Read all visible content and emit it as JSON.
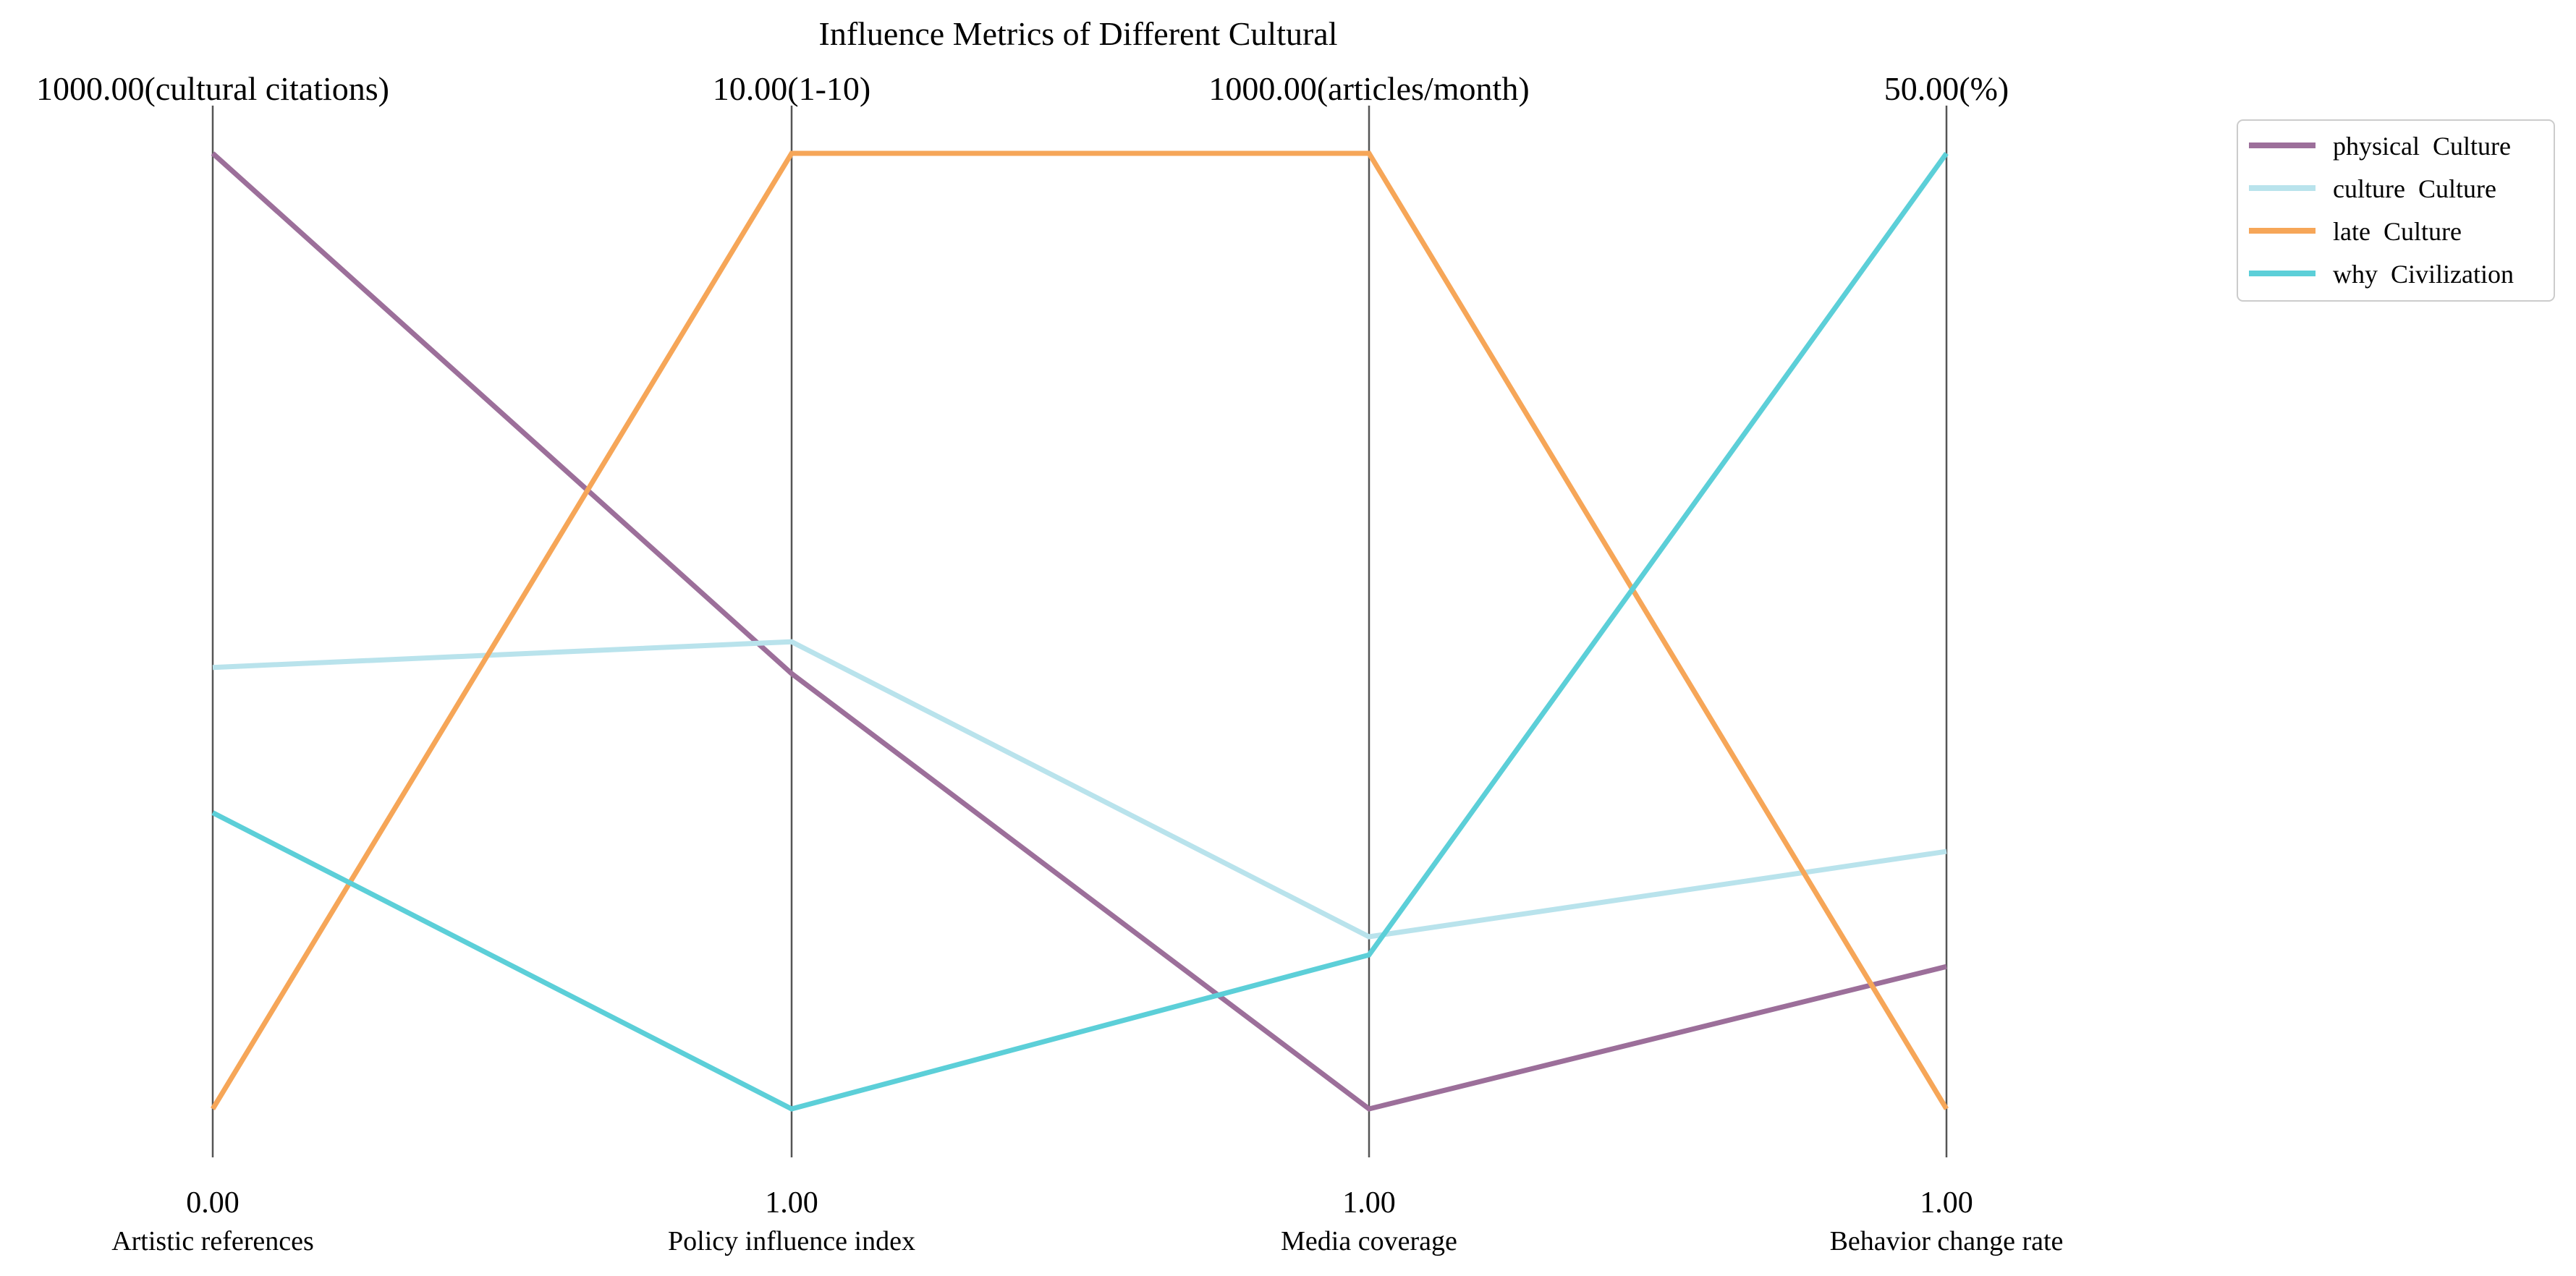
{
  "chart_data": {
    "type": "parallel_coordinates",
    "title": "Influence Metrics of Different Cultural",
    "axes": [
      {
        "name": "Artistic references",
        "min_label": "0.00",
        "max_label": "1000.00(cultural citations)",
        "min": 0,
        "max": 1000
      },
      {
        "name": "Policy influence index",
        "min_label": "1.00",
        "max_label": "10.00(1-10)",
        "min": 1,
        "max": 10
      },
      {
        "name": "Media coverage",
        "min_label": "1.00",
        "max_label": "1000.00(articles/month)",
        "min": 1,
        "max": 1000
      },
      {
        "name": "Behavior change rate",
        "min_label": "1.00",
        "max_label": "50.00(%)",
        "min": 1,
        "max": 50
      }
    ],
    "series": [
      {
        "name": "physical  Culture",
        "color": "#9c6f9a",
        "values": [
          1000,
          5.1,
          1,
          8.3
        ]
      },
      {
        "name": "culture  Culture",
        "color": "#b9e3ec",
        "values": [
          462,
          5.4,
          181,
          14.2
        ]
      },
      {
        "name": "late  Culture",
        "color": "#f6a658",
        "values": [
          0,
          10,
          1000,
          1
        ]
      },
      {
        "name": "why  Civilization",
        "color": "#5ccfd8",
        "values": [
          310,
          1,
          162,
          50
        ]
      }
    ],
    "legend_position": "top-right",
    "grid": false
  }
}
